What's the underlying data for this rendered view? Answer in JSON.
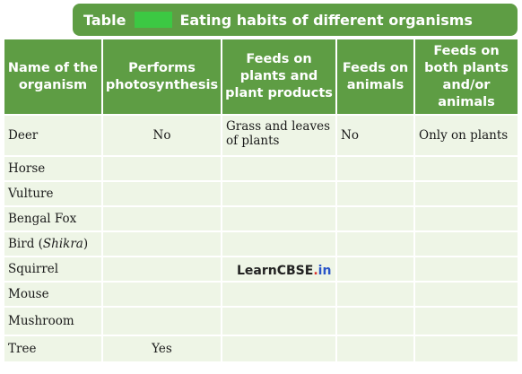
{
  "table": {
    "title_label": "Table",
    "title_text": "Eating habits of different organisms",
    "headers": [
      "Name of the organism",
      "Performs photosynthesis",
      "Feeds on plants and plant products",
      "Feeds on animals",
      "Feeds on both plants and/or animals"
    ],
    "rows": [
      {
        "name": "Deer",
        "photosynthesis": "No",
        "plants": "Grass and leaves of plants",
        "animals": "No",
        "both": "Only on plants"
      },
      {
        "name": "Horse",
        "photosynthesis": "",
        "plants": "",
        "animals": "",
        "both": ""
      },
      {
        "name": "Vulture",
        "photosynthesis": "",
        "plants": "",
        "animals": "",
        "both": ""
      },
      {
        "name": "Bengal Fox",
        "photosynthesis": "",
        "plants": "",
        "animals": "",
        "both": ""
      },
      {
        "name_prefix": "Bird (",
        "name_italic": "Shikra",
        "name_suffix": ")",
        "photosynthesis": "",
        "plants": "",
        "animals": "",
        "both": ""
      },
      {
        "name": "Squirrel",
        "photosynthesis": "",
        "plants": "",
        "animals": "",
        "both": ""
      },
      {
        "name": "Mouse",
        "photosynthesis": "",
        "plants": "",
        "animals": "",
        "both": ""
      },
      {
        "name": "Mushroom",
        "photosynthesis": "",
        "plants": "",
        "animals": "",
        "both": ""
      },
      {
        "name": "Tree",
        "photosynthesis": "Yes",
        "plants": "",
        "animals": "",
        "both": ""
      }
    ]
  },
  "watermark": {
    "part1": "LearnCBSE",
    "dot": ".",
    "part2": "in"
  },
  "colors": {
    "header_green": "#5e9d44",
    "cell_bg": "#eef5e6",
    "number_badge": "#3cc843"
  }
}
